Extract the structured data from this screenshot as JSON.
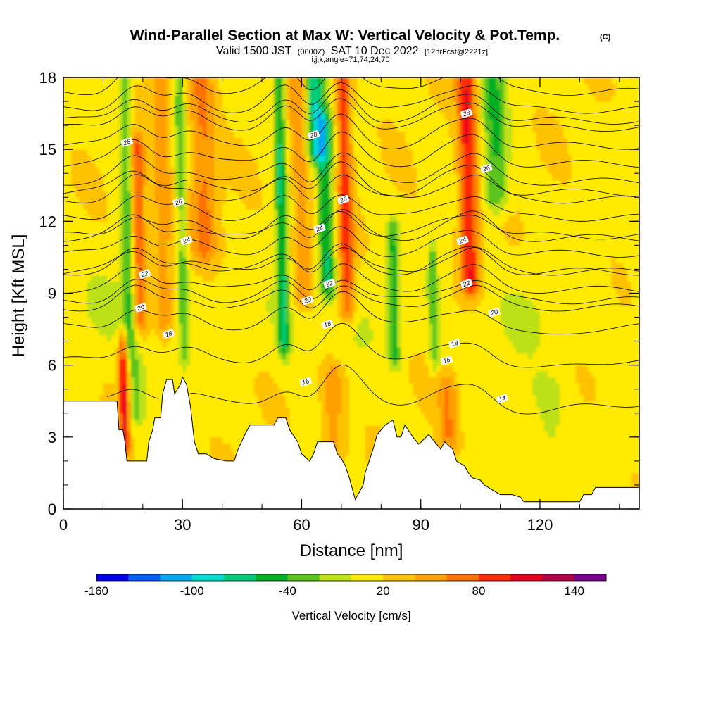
{
  "header": {
    "title": "Wind-Parallel Section at Max W: Vertical Velocity & Pot.Temp.",
    "title_units": "(C)",
    "valid_prefix": "Valid 1500 JST",
    "valid_utc": "(0600Z)",
    "valid_date": "SAT 10 Dec 2022",
    "forecast": "[12hrFcst@2221z]",
    "section_info": "i,j,k,angle=71,74,24,70"
  },
  "chart_data": {
    "type": "heatmap",
    "xlabel": "Distance [nm]",
    "ylabel": "Height [Kft MSL]",
    "xlim": [
      0,
      145
    ],
    "ylim": [
      0,
      18
    ],
    "x_ticks": [
      0,
      30,
      60,
      90,
      120
    ],
    "x_tick_labels": [
      "0",
      "30",
      "60",
      "90",
      "120"
    ],
    "y_ticks": [
      0,
      3,
      6,
      9,
      12,
      15,
      18
    ],
    "y_tick_labels": [
      "0",
      "3",
      "6",
      "9",
      "12",
      "15",
      "18"
    ],
    "background_w_cms": 15,
    "w_features": [
      {
        "x": 15.5,
        "w": 1.2,
        "y0": 2.8,
        "y1": 6.8,
        "peak": 95
      },
      {
        "x": 16.5,
        "w": 1.6,
        "y0": 7.0,
        "y1": 18.0,
        "peak": -50
      },
      {
        "x": 19.5,
        "w": 1.8,
        "y0": 8.0,
        "y1": 15.0,
        "peak": 65
      },
      {
        "x": 18.5,
        "w": 2.0,
        "y0": 4.0,
        "y1": 5.8,
        "peak": -40
      },
      {
        "x": 25.5,
        "w": 2.5,
        "y0": 8.0,
        "y1": 18.0,
        "peak": 40
      },
      {
        "x": 30.5,
        "w": 1.5,
        "y0": 6.5,
        "y1": 18.0,
        "peak": -45
      },
      {
        "x": 35.5,
        "w": 3.5,
        "y0": 11.0,
        "y1": 18.0,
        "peak": 50
      },
      {
        "x": 55.5,
        "w": 1.5,
        "y0": 7.0,
        "y1": 18.0,
        "peak": -75
      },
      {
        "x": 60.5,
        "w": 2.5,
        "y0": 9.0,
        "y1": 18.0,
        "peak": 45
      },
      {
        "x": 63.5,
        "w": 2.5,
        "y0": 15.0,
        "y1": 18.0,
        "peak": -95
      },
      {
        "x": 66.5,
        "w": 2.0,
        "y0": 9.5,
        "y1": 16.0,
        "peak": -70
      },
      {
        "x": 71.5,
        "w": 2.0,
        "y0": 8.5,
        "y1": 18.0,
        "peak": 75
      },
      {
        "x": 83.5,
        "w": 1.5,
        "y0": 6.5,
        "y1": 11.5,
        "peak": -55
      },
      {
        "x": 93.5,
        "w": 1.2,
        "y0": 6.5,
        "y1": 10.5,
        "peak": -50
      },
      {
        "x": 102.5,
        "w": 2.5,
        "y0": 9.5,
        "y1": 18.0,
        "peak": 85
      },
      {
        "x": 109.0,
        "w": 3.0,
        "y0": 13.0,
        "y1": 18.0,
        "peak": -55
      },
      {
        "x": 122.0,
        "w": 5.0,
        "y0": 1.0,
        "y1": 5.0,
        "peak": -20
      },
      {
        "x": 68.0,
        "w": 3.0,
        "y0": 2.5,
        "y1": 5.5,
        "peak": 40
      },
      {
        "x": 97.0,
        "w": 2.5,
        "y0": 3.0,
        "y1": 5.0,
        "peak": 45
      }
    ],
    "terrain_kft": [
      [
        0,
        4.5
      ],
      [
        13.5,
        4.5
      ],
      [
        14,
        3.3
      ],
      [
        15,
        3.3
      ],
      [
        15.5,
        2.8
      ],
      [
        16,
        2.0
      ],
      [
        21,
        2.0
      ],
      [
        21.5,
        2.8
      ],
      [
        22.5,
        3.3
      ],
      [
        23,
        3.8
      ],
      [
        24.5,
        3.8
      ],
      [
        25,
        4.8
      ],
      [
        26,
        5.4
      ],
      [
        27.5,
        5.4
      ],
      [
        28,
        4.8
      ],
      [
        29.5,
        5.2
      ],
      [
        30,
        5.5
      ],
      [
        31,
        5.2
      ],
      [
        32,
        4.3
      ],
      [
        33,
        2.8
      ],
      [
        34,
        2.3
      ],
      [
        36,
        2.3
      ],
      [
        38,
        2.1
      ],
      [
        41,
        2.0
      ],
      [
        43,
        2.0
      ],
      [
        44,
        2.5
      ],
      [
        46,
        3.2
      ],
      [
        47,
        3.5
      ],
      [
        53,
        3.5
      ],
      [
        54,
        3.8
      ],
      [
        56,
        3.8
      ],
      [
        57,
        3.3
      ],
      [
        59,
        2.8
      ],
      [
        60,
        2.3
      ],
      [
        62,
        2.0
      ],
      [
        63,
        2.3
      ],
      [
        64,
        2.8
      ],
      [
        68,
        2.8
      ],
      [
        69,
        2.3
      ],
      [
        70,
        2.1
      ],
      [
        71,
        1.8
      ],
      [
        72,
        1.3
      ],
      [
        73,
        0.7
      ],
      [
        73.5,
        0.4
      ],
      [
        74.5,
        0.7
      ],
      [
        75.5,
        1.0
      ],
      [
        76,
        1.5
      ],
      [
        77,
        2.0
      ],
      [
        78,
        2.5
      ],
      [
        79,
        3.1
      ],
      [
        81,
        3.5
      ],
      [
        83,
        3.7
      ],
      [
        84,
        3.0
      ],
      [
        85,
        3.0
      ],
      [
        86,
        3.5
      ],
      [
        88,
        3.0
      ],
      [
        89.5,
        2.7
      ],
      [
        92,
        3.1
      ],
      [
        94,
        2.7
      ],
      [
        95,
        2.5
      ],
      [
        96,
        2.8
      ],
      [
        98,
        2.5
      ],
      [
        99,
        2.0
      ],
      [
        101,
        1.8
      ],
      [
        102,
        1.5
      ],
      [
        103,
        1.3
      ],
      [
        105,
        1.2
      ],
      [
        106,
        1.0
      ],
      [
        108,
        0.8
      ],
      [
        110,
        0.6
      ],
      [
        113,
        0.6
      ],
      [
        115,
        0.5
      ],
      [
        116,
        0.3
      ],
      [
        120,
        0.3
      ],
      [
        124,
        0.3
      ],
      [
        127,
        0.3
      ],
      [
        130,
        0.3
      ],
      [
        131,
        0.6
      ],
      [
        133,
        0.6
      ],
      [
        134,
        0.9
      ],
      [
        138,
        0.9
      ],
      [
        145,
        0.9
      ]
    ],
    "contour_levels_c": [
      14,
      16,
      18,
      20,
      22,
      24,
      26,
      28
    ],
    "contour_labels": [
      {
        "x": 16,
        "y": 15.3,
        "text": "26"
      },
      {
        "x": 29,
        "y": 12.8,
        "text": "26"
      },
      {
        "x": 31,
        "y": 11.2,
        "text": "24"
      },
      {
        "x": 20.5,
        "y": 9.8,
        "text": "22"
      },
      {
        "x": 19.5,
        "y": 8.4,
        "text": "20"
      },
      {
        "x": 26.5,
        "y": 7.3,
        "text": "18"
      },
      {
        "x": 63,
        "y": 15.6,
        "text": "28"
      },
      {
        "x": 70.5,
        "y": 12.9,
        "text": "26"
      },
      {
        "x": 64.5,
        "y": 11.7,
        "text": "24"
      },
      {
        "x": 67,
        "y": 9.4,
        "text": "22"
      },
      {
        "x": 61.5,
        "y": 8.7,
        "text": "20"
      },
      {
        "x": 66.5,
        "y": 7.7,
        "text": "18"
      },
      {
        "x": 61,
        "y": 5.3,
        "text": "16"
      },
      {
        "x": 101.5,
        "y": 16.5,
        "text": "28"
      },
      {
        "x": 106.5,
        "y": 14.2,
        "text": "26"
      },
      {
        "x": 100.5,
        "y": 11.2,
        "text": "24"
      },
      {
        "x": 101.5,
        "y": 9.4,
        "text": "22"
      },
      {
        "x": 108.5,
        "y": 8.2,
        "text": "20"
      },
      {
        "x": 98.5,
        "y": 6.9,
        "text": "18"
      },
      {
        "x": 96.5,
        "y": 6.2,
        "text": "16"
      },
      {
        "x": 110.5,
        "y": 4.6,
        "text": "14"
      }
    ],
    "colorbar": {
      "title": "Vertical Velocity [cm/s]",
      "min": -160,
      "max": 160,
      "step": 20,
      "tick_values": [
        -160,
        -100,
        -40,
        20,
        80,
        140
      ],
      "tick_labels": [
        "-160",
        "-100",
        "-40",
        "20",
        "80",
        "140"
      ],
      "colors": [
        "#0000ee",
        "#005ff5",
        "#00a8ef",
        "#00dcd0",
        "#00cc77",
        "#00b024",
        "#5cc41c",
        "#bde112",
        "#ffea00",
        "#ffc200",
        "#ff9f00",
        "#ff7100",
        "#ff2c00",
        "#e6001f",
        "#b2004b",
        "#7c0090"
      ]
    }
  }
}
